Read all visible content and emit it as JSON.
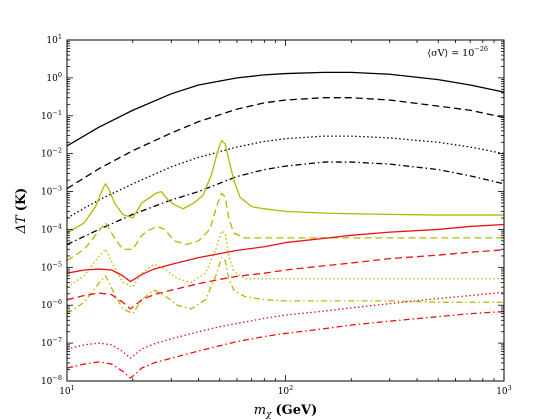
{
  "chart_data": {
    "type": "line",
    "xscale": "log",
    "yscale": "log",
    "xlim": [
      10,
      1000
    ],
    "ylim": [
      1e-08,
      10
    ],
    "xlabel": {
      "symbol": "m",
      "sub": "χ",
      "unit": "(GeV)"
    },
    "ylabel": {
      "symbol": "ΔT",
      "unit": "(K)"
    },
    "annotation": {
      "lhs": "⟨σV⟩ = 10",
      "exp": "−26"
    },
    "x_ticks": [
      {
        "value": 10,
        "base": "10",
        "exp": "1"
      },
      {
        "value": 100,
        "base": "10",
        "exp": "2"
      },
      {
        "value": 1000,
        "base": "10",
        "exp": "3"
      }
    ],
    "y_ticks": [
      {
        "value": 1e-08,
        "base": "10",
        "exp": "−8"
      },
      {
        "value": 1e-07,
        "base": "10",
        "exp": "−7"
      },
      {
        "value": 1e-06,
        "base": "10",
        "exp": "−6"
      },
      {
        "value": 1e-05,
        "base": "10",
        "exp": "−5"
      },
      {
        "value": 0.0001,
        "base": "10",
        "exp": "−4"
      },
      {
        "value": 0.001,
        "base": "10",
        "exp": "−3"
      },
      {
        "value": 0.01,
        "base": "10",
        "exp": "−2"
      },
      {
        "value": 0.1,
        "base": "10",
        "exp": "−1"
      },
      {
        "value": 1,
        "base": "10",
        "exp": "0"
      },
      {
        "value": 10,
        "base": "10",
        "exp": "1"
      }
    ],
    "series": [
      {
        "color": "#000000",
        "dash": "solid",
        "x": [
          10,
          14,
          20,
          30,
          40,
          60,
          80,
          100,
          150,
          200,
          300,
          500,
          700,
          1000
        ],
        "y": [
          0.016,
          0.05,
          0.14,
          0.38,
          0.65,
          1.0,
          1.2,
          1.3,
          1.4,
          1.4,
          1.25,
          0.9,
          0.65,
          0.42
        ]
      },
      {
        "color": "#000000",
        "dash": "dashed",
        "x": [
          10,
          14,
          20,
          30,
          40,
          60,
          80,
          100,
          150,
          200,
          300,
          500,
          700,
          1000
        ],
        "y": [
          0.0012,
          0.004,
          0.012,
          0.035,
          0.07,
          0.15,
          0.22,
          0.26,
          0.3,
          0.3,
          0.26,
          0.18,
          0.14,
          0.09
        ]
      },
      {
        "color": "#000000",
        "dash": "dotted",
        "x": [
          10,
          14,
          20,
          30,
          40,
          60,
          80,
          100,
          150,
          200,
          300,
          500,
          700,
          1000
        ],
        "y": [
          0.0002,
          0.0006,
          0.0016,
          0.0045,
          0.008,
          0.015,
          0.021,
          0.025,
          0.029,
          0.029,
          0.026,
          0.02,
          0.015,
          0.01
        ]
      },
      {
        "color": "#000000",
        "dash": "dashdot",
        "x": [
          10,
          14,
          20,
          30,
          40,
          60,
          80,
          100,
          150,
          200,
          300,
          500,
          700,
          1000
        ],
        "y": [
          4e-05,
          0.0001,
          0.00025,
          0.0006,
          0.001,
          0.0025,
          0.0038,
          0.0047,
          0.006,
          0.006,
          0.0053,
          0.0038,
          0.0026,
          0.0016
        ]
      },
      {
        "color": "#b5b800",
        "dash": "solid",
        "x": [
          10,
          12,
          13.5,
          14.5,
          15,
          15.5,
          16.5,
          18,
          20,
          22,
          24,
          25.5,
          27,
          29,
          31,
          34,
          38,
          42,
          46,
          49,
          51,
          53,
          55,
          58,
          62,
          70,
          80,
          100,
          150,
          200,
          300,
          500,
          1000
        ],
        "y": [
          8e-05,
          0.00015,
          0.0004,
          0.0011,
          0.0016,
          0.0012,
          0.0005,
          0.00025,
          0.0002,
          0.0005,
          0.0007,
          0.0009,
          0.001,
          0.0006,
          0.00045,
          0.00035,
          0.0005,
          0.0008,
          0.003,
          0.012,
          0.022,
          0.018,
          0.007,
          0.002,
          0.0007,
          0.0004,
          0.00035,
          0.0003,
          0.00027,
          0.00026,
          0.00025,
          0.00024,
          0.00024
        ]
      },
      {
        "color": "#b5b800",
        "dash": "dashed",
        "x": [
          10,
          12,
          13.5,
          15,
          16.5,
          18,
          20,
          22,
          24,
          26,
          28,
          31,
          35,
          40,
          45,
          49,
          51,
          53,
          55,
          58,
          65,
          80,
          100,
          150,
          200,
          300,
          500,
          1000
        ],
        "y": [
          1.5e-05,
          3e-05,
          7e-05,
          0.00015,
          6e-05,
          3e-05,
          3e-05,
          7e-05,
          0.0001,
          0.00012,
          0.0001,
          5e-05,
          4e-05,
          5e-05,
          0.0001,
          0.0005,
          0.0009,
          0.0007,
          0.0002,
          8e-05,
          6e-05,
          6e-05,
          6e-05,
          6e-05,
          6e-05,
          6e-05,
          6e-05,
          6e-05
        ]
      },
      {
        "color": "#b5b800",
        "dash": "dotted",
        "x": [
          10,
          12,
          13.5,
          15,
          16.5,
          18,
          20,
          22,
          25,
          28,
          32,
          37,
          43,
          48,
          51,
          53,
          55,
          58,
          65,
          80,
          100,
          150,
          200,
          300,
          500,
          1000
        ],
        "y": [
          3e-06,
          6e-06,
          1.5e-05,
          3e-05,
          1e-05,
          4e-06,
          3e-06,
          7e-06,
          1.2e-05,
          9e-06,
          5e-06,
          4e-06,
          7e-06,
          3e-05,
          9e-05,
          8e-05,
          2e-05,
          8e-06,
          5e-06,
          5e-06,
          5e-06,
          5e-06,
          5e-06,
          5e-06,
          5e-06,
          5e-06
        ]
      },
      {
        "color": "#b5b800",
        "dash": "dashdot",
        "x": [
          10,
          12,
          13.5,
          15,
          16.5,
          18,
          20,
          22,
          25,
          28,
          32,
          37,
          43,
          48,
          51,
          53,
          55,
          58,
          65,
          80,
          100,
          150,
          200,
          300,
          500,
          1000
        ],
        "y": [
          6e-07,
          1.2e-06,
          3e-06,
          6e-06,
          2e-06,
          8e-07,
          6e-07,
          1.4e-06,
          2.5e-06,
          1.8e-06,
          1e-06,
          8e-07,
          1.4e-06,
          6e-06,
          1.8e-05,
          1.5e-05,
          5e-06,
          2.5e-06,
          1.7e-06,
          1.4e-06,
          1.3e-06,
          1.3e-06,
          1.3e-06,
          1.3e-06,
          1.2e-06,
          1.2e-06
        ]
      },
      {
        "color": "#ee1111",
        "dash": "solid",
        "x": [
          10,
          12,
          14,
          16,
          18,
          19.5,
          20.5,
          22,
          25,
          30,
          40,
          50,
          60,
          80,
          100,
          150,
          200,
          300,
          500,
          700,
          1000
        ],
        "y": [
          7e-06,
          8.5e-06,
          9e-06,
          8.5e-06,
          6e-06,
          4.2e-06,
          5e-06,
          6.5e-06,
          9e-06,
          1.2e-05,
          1.8e-05,
          2.3e-05,
          2.8e-05,
          3.5e-05,
          4.5e-05,
          5.8e-05,
          7e-05,
          8.5e-05,
          0.0001,
          0.00012,
          0.000135
        ]
      },
      {
        "color": "#ee1111",
        "dash": "dashed",
        "x": [
          10,
          12,
          14,
          16,
          18,
          19.5,
          20.5,
          22,
          25,
          30,
          40,
          50,
          60,
          80,
          100,
          150,
          200,
          300,
          500,
          700,
          1000
        ],
        "y": [
          1.4e-06,
          1.8e-06,
          2.1e-06,
          1.9e-06,
          1.2e-06,
          8e-07,
          1e-06,
          1.4e-06,
          1.9e-06,
          2.5e-06,
          3.7e-06,
          4.8e-06,
          5.8e-06,
          7e-06,
          8.5e-06,
          1.1e-05,
          1.3e-05,
          1.7e-05,
          2.1e-05,
          2.5e-05,
          2.9e-05
        ]
      },
      {
        "color": "#ee1111",
        "dash": "dotted",
        "x": [
          10,
          12,
          14,
          16,
          18,
          19.5,
          20.5,
          22,
          25,
          30,
          40,
          50,
          60,
          80,
          100,
          150,
          200,
          300,
          500,
          700,
          1000
        ],
        "y": [
          7e-08,
          9e-08,
          1e-07,
          9e-08,
          6e-08,
          4e-08,
          5e-08,
          7e-08,
          9.5e-08,
          1.3e-07,
          2e-07,
          2.7e-07,
          3.3e-07,
          4.5e-07,
          5.5e-07,
          7e-07,
          8.5e-07,
          1.1e-06,
          1.5e-06,
          1.8e-06,
          2.2e-06
        ]
      },
      {
        "color": "#ee1111",
        "dash": "dashdot",
        "x": [
          10,
          12,
          14,
          16,
          18,
          19.5,
          20.5,
          22,
          25,
          30,
          40,
          50,
          60,
          80,
          100,
          150,
          200,
          300,
          500,
          700,
          1000
        ],
        "y": [
          2.2e-08,
          2.8e-08,
          3.2e-08,
          2.8e-08,
          1.8e-08,
          1.2e-08,
          1.5e-08,
          2.2e-08,
          3e-08,
          4e-08,
          6.2e-08,
          8.5e-08,
          1.1e-07,
          1.5e-07,
          1.8e-07,
          2.4e-07,
          3e-07,
          3.8e-07,
          5e-07,
          6e-07,
          6.8e-07
        ]
      }
    ]
  }
}
